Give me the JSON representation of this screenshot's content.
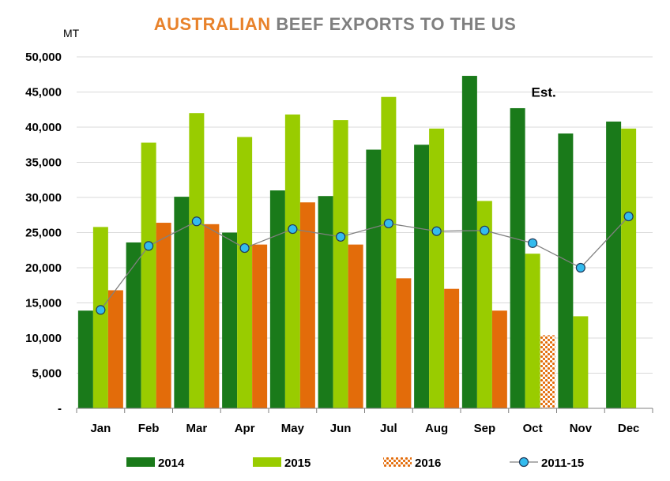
{
  "chart_data": {
    "type": "bar",
    "title_part1": "AUSTRALIAN",
    "title_part2": "BEEF EXPORTS TO THE US",
    "ylabel": "MT",
    "categories": [
      "Jan",
      "Feb",
      "Mar",
      "Apr",
      "May",
      "Jun",
      "Jul",
      "Aug",
      "Sep",
      "Oct",
      "Nov",
      "Dec"
    ],
    "ylim": [
      0,
      50000
    ],
    "yticks": [
      "-",
      "5,000",
      "10,000",
      "15,000",
      "20,000",
      "25,000",
      "30,000",
      "35,000",
      "40,000",
      "45,000",
      "50,000"
    ],
    "grid": true,
    "legend_position": "bottom",
    "series": [
      {
        "name": "2014",
        "type": "bar",
        "color": "#1a7a1a",
        "values": [
          13900,
          23600,
          30100,
          25000,
          31000,
          30200,
          36800,
          37500,
          47300,
          42700,
          39100,
          40800
        ]
      },
      {
        "name": "2015",
        "type": "bar",
        "color": "#99cc00",
        "values": [
          25800,
          37800,
          42000,
          38600,
          41800,
          41000,
          44300,
          39800,
          29500,
          22000,
          13100,
          39800
        ]
      },
      {
        "name": "2016",
        "type": "bar",
        "color": "#e36c0a",
        "values": [
          16800,
          26400,
          26200,
          23300,
          29300,
          23300,
          18500,
          17000,
          13900,
          10400,
          null,
          null
        ],
        "estimated_index": 9
      },
      {
        "name": "2011-15",
        "type": "line",
        "color": "#808080",
        "marker_color": "#33bbee",
        "values": [
          14000,
          23100,
          26600,
          22800,
          25500,
          24400,
          26300,
          25200,
          25300,
          23500,
          20000,
          27300
        ]
      }
    ],
    "annotations": [
      {
        "text": "Est.",
        "category": "Oct",
        "value": 45000
      }
    ]
  }
}
